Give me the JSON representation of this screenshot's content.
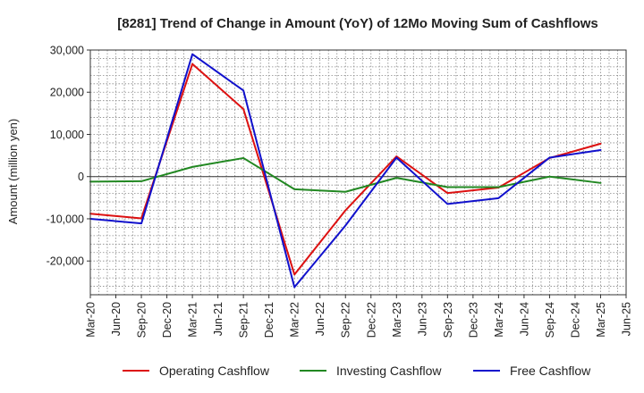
{
  "chart_data": {
    "type": "line",
    "title": "[8281]  Trend of Change in Amount (YoY) of 12Mo Moving Sum of Cashflows",
    "xlabel": "",
    "ylabel": "Amount (million yen)",
    "ylim": [
      -28000,
      30000
    ],
    "yticks": [
      30000,
      20000,
      10000,
      0,
      -10000,
      -20000
    ],
    "ytick_labels": [
      "30,000",
      "20,000",
      "10,000",
      "0",
      "-10,000",
      "-20,000"
    ],
    "x_categories": [
      "Mar-20",
      "Jun-20",
      "Sep-20",
      "Dec-20",
      "Mar-21",
      "Jun-21",
      "Sep-21",
      "Dec-21",
      "Mar-22",
      "Jun-22",
      "Sep-22",
      "Dec-22",
      "Mar-23",
      "Jun-23",
      "Sep-23",
      "Dec-23",
      "Mar-24",
      "Jun-24",
      "Sep-24",
      "Dec-24",
      "Mar-25",
      "Jun-25"
    ],
    "grid": true,
    "legend_position": "bottom",
    "series": [
      {
        "name": "Operating Cashflow",
        "color": "#dd1111",
        "points": [
          {
            "x": "Mar-20",
            "y": -8800
          },
          {
            "x": "Sep-20",
            "y": -9900
          },
          {
            "x": "Mar-21",
            "y": 26700
          },
          {
            "x": "Sep-21",
            "y": 16000
          },
          {
            "x": "Mar-22",
            "y": -23200
          },
          {
            "x": "Sep-22",
            "y": -8000
          },
          {
            "x": "Mar-23",
            "y": 4800
          },
          {
            "x": "Sep-23",
            "y": -3900
          },
          {
            "x": "Mar-24",
            "y": -2600
          },
          {
            "x": "Sep-24",
            "y": 4400
          },
          {
            "x": "Mar-25",
            "y": 7800
          }
        ]
      },
      {
        "name": "Investing Cashflow",
        "color": "#228822",
        "points": [
          {
            "x": "Mar-20",
            "y": -1200
          },
          {
            "x": "Sep-20",
            "y": -1100
          },
          {
            "x": "Mar-21",
            "y": 2300
          },
          {
            "x": "Sep-21",
            "y": 4400
          },
          {
            "x": "Mar-22",
            "y": -3000
          },
          {
            "x": "Sep-22",
            "y": -3600
          },
          {
            "x": "Mar-23",
            "y": -300
          },
          {
            "x": "Sep-23",
            "y": -2500
          },
          {
            "x": "Mar-24",
            "y": -2500
          },
          {
            "x": "Sep-24",
            "y": 0
          },
          {
            "x": "Mar-25",
            "y": -1500
          }
        ]
      },
      {
        "name": "Free Cashflow",
        "color": "#1111cc",
        "points": [
          {
            "x": "Mar-20",
            "y": -10000
          },
          {
            "x": "Sep-20",
            "y": -11100
          },
          {
            "x": "Mar-21",
            "y": 29000
          },
          {
            "x": "Sep-21",
            "y": 20400
          },
          {
            "x": "Mar-22",
            "y": -26200
          },
          {
            "x": "Sep-22",
            "y": -11600
          },
          {
            "x": "Mar-23",
            "y": 4500
          },
          {
            "x": "Sep-23",
            "y": -6500
          },
          {
            "x": "Mar-24",
            "y": -5100
          },
          {
            "x": "Sep-24",
            "y": 4500
          },
          {
            "x": "Mar-25",
            "y": 6300
          }
        ]
      }
    ]
  }
}
